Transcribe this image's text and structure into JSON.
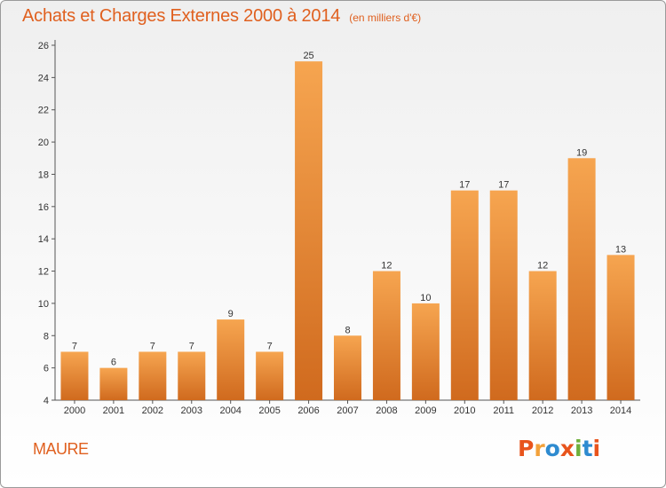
{
  "header": {
    "title": "Achats et Charges Externes 2000 à 2014",
    "subtitle": "(en milliers d'€)"
  },
  "footer": {
    "commune": "MAURE",
    "logo_text": "Proxiti",
    "logo_colors": [
      "#e8541c",
      "#f2a13a",
      "#2e8bd0",
      "#e8541c",
      "#6fb03b",
      "#2e8bd0",
      "#e8541c"
    ]
  },
  "chart_data": {
    "type": "bar",
    "categories": [
      "2000",
      "2001",
      "2002",
      "2003",
      "2004",
      "2005",
      "2006",
      "2007",
      "2008",
      "2009",
      "2010",
      "2011",
      "2012",
      "2013",
      "2014"
    ],
    "values": [
      7,
      6,
      7,
      7,
      9,
      7,
      25,
      8,
      12,
      10,
      17,
      17,
      12,
      19,
      13
    ],
    "data_labels": [
      "7",
      "6",
      "7",
      "7",
      "9",
      "7",
      "25",
      "8",
      "12",
      "10",
      "17",
      "17",
      "12",
      "19",
      "13"
    ],
    "ylim": [
      4,
      26
    ],
    "yticks": [
      4,
      6,
      8,
      10,
      12,
      14,
      16,
      18,
      20,
      22,
      24,
      26
    ],
    "grid": false,
    "bar_color_top": "#f6a550",
    "bar_color_bottom": "#d06a1e"
  }
}
